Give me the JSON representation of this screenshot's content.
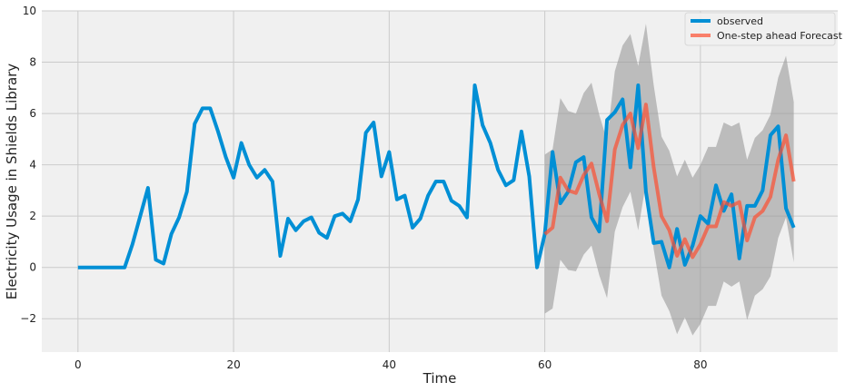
{
  "chart_data": {
    "type": "line",
    "title": "",
    "xlabel": "Time",
    "ylabel": "Electricity Usage in Shields Library",
    "xlim": [
      -4.65,
      97.65
    ],
    "ylim": [
      -3.3,
      10
    ],
    "xticks": [
      0,
      20,
      40,
      60,
      80
    ],
    "yticks": [
      -2,
      0,
      2,
      4,
      6,
      8,
      10
    ],
    "ytick_labels": [
      "−2",
      "0",
      "2",
      "4",
      "6",
      "8",
      "10"
    ],
    "grid": true,
    "legend_position": "top-right",
    "colors": {
      "observed": "#008fd5",
      "forecast": "#fc4f30",
      "confidence_band": "#999999",
      "axes_background": "#f0f0f0",
      "grid": "#cbcbcb"
    },
    "series": [
      {
        "name": "observed",
        "style": "line",
        "x": [
          0,
          1,
          2,
          3,
          4,
          5,
          6,
          7,
          8,
          9,
          10,
          11,
          12,
          13,
          14,
          15,
          16,
          17,
          18,
          19,
          20,
          21,
          22,
          23,
          24,
          25,
          26,
          27,
          28,
          29,
          30,
          31,
          32,
          33,
          34,
          35,
          36,
          37,
          38,
          39,
          40,
          41,
          42,
          43,
          44,
          45,
          46,
          47,
          48,
          49,
          50,
          51,
          52,
          53,
          54,
          55,
          56,
          57,
          58,
          59,
          60,
          61,
          62,
          63,
          64,
          65,
          66,
          67,
          68,
          69,
          70,
          71,
          72,
          73,
          74,
          75,
          76,
          77,
          78,
          79,
          80,
          81,
          82,
          83,
          84,
          85,
          86,
          87,
          88,
          89,
          90,
          91,
          92
        ],
        "y": [
          0,
          0,
          0,
          0,
          0,
          0,
          0,
          0.9,
          2.0,
          3.1,
          0.3,
          0.15,
          1.3,
          1.95,
          2.95,
          5.6,
          6.2,
          6.2,
          5.3,
          4.3,
          3.5,
          4.85,
          4.0,
          3.5,
          3.8,
          3.35,
          0.45,
          1.9,
          1.45,
          1.8,
          1.95,
          1.35,
          1.15,
          2.0,
          2.1,
          1.8,
          2.65,
          5.25,
          5.65,
          3.55,
          4.5,
          2.65,
          2.8,
          1.55,
          1.9,
          2.8,
          3.35,
          3.35,
          2.6,
          2.4,
          1.95,
          7.1,
          5.55,
          4.85,
          3.8,
          3.2,
          3.4,
          5.3,
          3.55,
          0.0,
          1.3,
          4.5,
          2.5,
          2.95,
          4.1,
          4.3,
          1.95,
          1.4,
          5.75,
          6.05,
          6.55,
          3.9,
          7.1,
          2.95,
          0.95,
          1.0,
          0.0,
          1.5,
          0.1,
          0.85,
          2.0,
          1.7,
          3.2,
          2.2,
          2.85,
          0.35,
          2.4,
          2.4,
          3.0,
          5.15,
          5.5,
          2.3,
          1.55
        ]
      },
      {
        "name": "One-step ahead Forecast",
        "style": "line",
        "x": [
          60,
          61,
          62,
          63,
          64,
          65,
          66,
          67,
          68,
          69,
          70,
          71,
          72,
          73,
          74,
          75,
          76,
          77,
          78,
          79,
          80,
          81,
          82,
          83,
          84,
          85,
          86,
          87,
          88,
          89,
          90,
          91,
          92
        ],
        "y": [
          1.3,
          1.55,
          3.5,
          3.0,
          2.9,
          3.6,
          4.05,
          2.85,
          1.8,
          4.6,
          5.55,
          6.0,
          4.65,
          6.35,
          3.9,
          2.0,
          1.45,
          0.45,
          1.1,
          0.4,
          0.9,
          1.6,
          1.6,
          2.55,
          2.4,
          2.55,
          1.05,
          1.95,
          2.2,
          2.75,
          4.2,
          5.15,
          3.35
        ]
      },
      {
        "name": "",
        "style": "band",
        "x": [
          60,
          61,
          62,
          63,
          64,
          65,
          66,
          67,
          68,
          69,
          70,
          71,
          72,
          73,
          74,
          75,
          76,
          77,
          78,
          79,
          80,
          81,
          82,
          83,
          84,
          85,
          86,
          87,
          88,
          89,
          90,
          91,
          92
        ],
        "lower": [
          -1.8,
          -1.6,
          0.3,
          -0.1,
          -0.15,
          0.5,
          0.85,
          -0.3,
          -1.2,
          1.4,
          2.35,
          2.95,
          1.45,
          3.3,
          0.7,
          -1.1,
          -1.7,
          -2.6,
          -1.95,
          -2.65,
          -2.2,
          -1.5,
          -1.5,
          -0.55,
          -0.75,
          -0.55,
          -2.05,
          -1.1,
          -0.85,
          -0.35,
          1.15,
          1.95,
          0.2
        ],
        "upper": [
          4.4,
          4.6,
          6.6,
          6.1,
          6.0,
          6.8,
          7.2,
          5.95,
          4.95,
          7.65,
          8.65,
          9.1,
          7.85,
          9.5,
          7.1,
          5.1,
          4.55,
          3.55,
          4.2,
          3.5,
          4.0,
          4.7,
          4.7,
          5.65,
          5.5,
          5.65,
          4.2,
          5.05,
          5.35,
          5.95,
          7.4,
          8.25,
          6.45
        ]
      }
    ]
  }
}
